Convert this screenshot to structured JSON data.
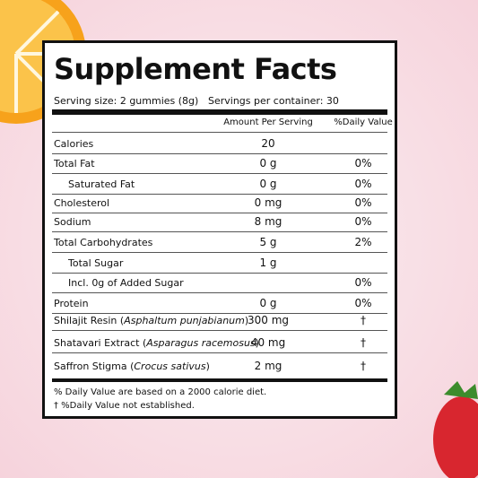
{
  "title": "Supplement Facts",
  "serving_size": "Serving size: 2 gummies (8g)",
  "servings_per_container": "Servings per container: 30",
  "header": {
    "amount": "Amount Per Serving",
    "daily_value": "%Daily Value"
  },
  "rows": [
    {
      "name": "Calories",
      "amount": "20"
    },
    {
      "name": "Total Fat",
      "amount": "0 g",
      "dv": "0%"
    },
    {
      "name": "Saturated Fat",
      "amount": "0 g",
      "dv": "0%"
    },
    {
      "name": "Cholesterol",
      "amount": "0 mg",
      "dv": "0%"
    },
    {
      "name": "Sodium",
      "amount": "8 mg",
      "dv": "0%"
    },
    {
      "name": "Total Carbohydrates",
      "amount": "5 g",
      "dv": "2%"
    },
    {
      "name": "Total Sugar",
      "amount": "1 g"
    },
    {
      "name": "Incl. 0g of Added Sugar",
      "dv": "0%"
    },
    {
      "name": "Protein",
      "amount": "0 g",
      "dv": "0%"
    },
    {
      "name": "Shilajit Resin (",
      "latin": "Asphaltum punjabianum",
      "close": ")",
      "amount": "300 mg",
      "dv": "†"
    },
    {
      "name": "Shatavari Extract (",
      "latin": "Asparagus racemosus",
      "close": ")",
      "amount": "40 mg",
      "dv": "†"
    },
    {
      "name": "Saffron Stigma (",
      "latin": "Crocus sativus",
      "close": ")",
      "amount": "2 mg",
      "dv": "†"
    }
  ],
  "footnotes": [
    "% Daily Value are based on a 2000 calorie diet.",
    "† %Daily Value not established."
  ]
}
